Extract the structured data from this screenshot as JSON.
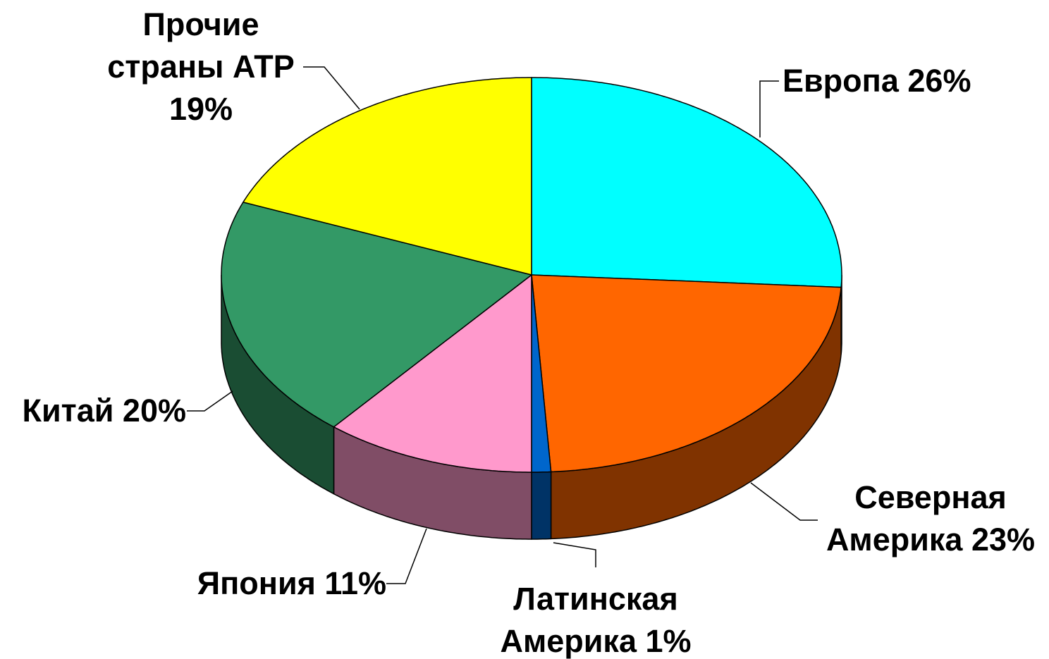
{
  "chart_data": {
    "type": "pie3d",
    "categories": [
      "Европа",
      "Северная Америка",
      "Латинская Америка",
      "Япония",
      "Китай",
      "Прочие страны АТР"
    ],
    "values": [
      26,
      23,
      1,
      11,
      20,
      19
    ],
    "value_labels": [
      "26%",
      "23%",
      "1%",
      "11%",
      "20%",
      "19%"
    ],
    "colors": [
      "#00ffff",
      "#ff6600",
      "#0066cc",
      "#ff99cc",
      "#339966",
      "#ffff00"
    ]
  }
}
